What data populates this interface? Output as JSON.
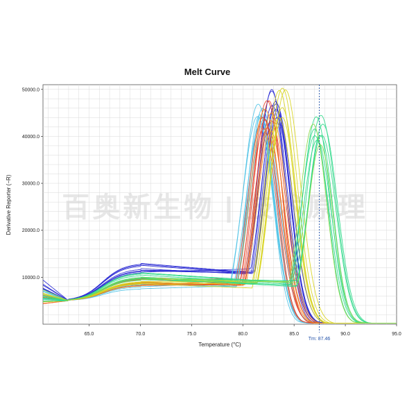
{
  "chart_data": {
    "type": "line",
    "title": "Melt Curve",
    "xlabel": "Temperature (°C)",
    "ylabel": "Derivative Reporter (−R)",
    "xlim": [
      60.5,
      95.0
    ],
    "ylim": [
      0,
      51000
    ],
    "x_ticks": [
      65.0,
      70.0,
      75.0,
      80.0,
      85.0,
      90.0,
      95.0
    ],
    "x_tick_labels": [
      "65.0",
      "70.0",
      "75.0",
      "80.0",
      "85.0",
      "90.0",
      "95.0"
    ],
    "y_ticks": [
      10000,
      20000,
      30000,
      40000,
      50000
    ],
    "y_tick_labels": [
      "10000.0",
      "20000.0",
      "30000.0",
      "40000.0",
      "50000.0"
    ],
    "grid": true,
    "legend": "none",
    "tm_marker": {
      "x": 87.46,
      "label": "Tm: 87.46"
    },
    "watermark": "百奥新生物 | 技术原理",
    "series": [
      {
        "color": "#2a2ad4",
        "peak_x": 83.2,
        "peak_y": 47000,
        "count": 8,
        "base_left": 8300,
        "plateau": 12000,
        "base_right": 11000
      },
      {
        "color": "#4fc3e6",
        "peak_x": 81.7,
        "peak_y": 45000,
        "count": 7,
        "base_left": 6500,
        "plateau": 8500,
        "base_right": 8500
      },
      {
        "color": "#e8442a",
        "peak_x": 82.4,
        "peak_y": 45000,
        "count": 7,
        "base_left": 5500,
        "plateau": 9000,
        "base_right": 9000
      },
      {
        "color": "#f08a1e",
        "peak_x": 82.6,
        "peak_y": 44000,
        "count": 3,
        "base_left": 5000,
        "plateau": 9000,
        "base_right": 9000
      },
      {
        "color": "#d8d41e",
        "peak_x": 83.9,
        "peak_y": 47000,
        "count": 6,
        "base_left": 5500,
        "plateau": 9000,
        "base_right": 8500
      },
      {
        "color": "#2fd98a",
        "peak_x": 87.4,
        "peak_y": 42500,
        "count": 8,
        "base_left": 6000,
        "plateau": 10000,
        "base_right": 8500
      },
      {
        "color": "#8ad94a",
        "peak_x": 87.2,
        "peak_y": 41000,
        "count": 2,
        "base_left": 6500,
        "plateau": 10500,
        "base_right": 9000
      }
    ]
  }
}
